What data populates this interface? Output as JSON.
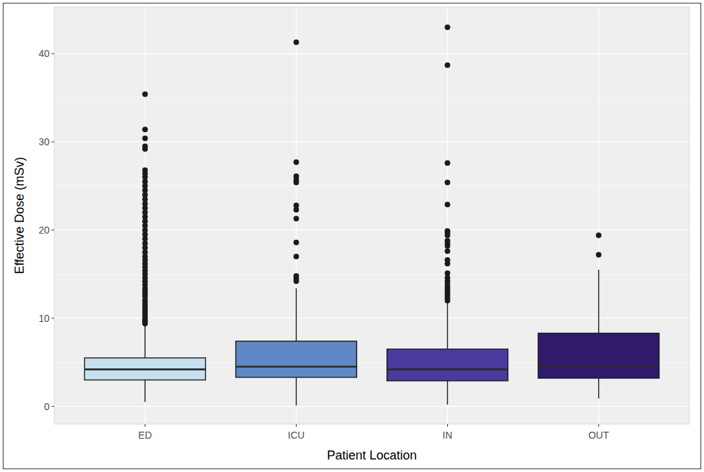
{
  "chart_data": {
    "type": "box",
    "x_label": "Patient Location",
    "y_label": "Effective Dose (mSv)",
    "categories": [
      "ED",
      "ICU",
      "IN",
      "OUT"
    ],
    "colors": [
      "#c6e1ef",
      "#6088c6",
      "#4a3a9e",
      "#2f1a6b"
    ],
    "boxes": [
      {
        "low": 0.5,
        "q1": 3.0,
        "median": 4.2,
        "q3": 5.5,
        "high": 9.3,
        "outliers": [
          9.4,
          9.6,
          9.8,
          10.0,
          10.3,
          10.6,
          10.9,
          11.2,
          11.5,
          11.8,
          12.1,
          12.5,
          12.8,
          13.1,
          13.4,
          13.8,
          14.2,
          14.6,
          15.0,
          15.4,
          15.8,
          16.2,
          16.6,
          17.0,
          17.5,
          18.0,
          18.5,
          19.0,
          19.5,
          20.0,
          20.5,
          21.0,
          21.5,
          22.0,
          22.5,
          23.0,
          23.5,
          24.0,
          24.5,
          25.0,
          25.5,
          26.0,
          26.4,
          26.8,
          29.2,
          29.5,
          30.4,
          31.4,
          35.4
        ]
      },
      {
        "low": 0.1,
        "q1": 3.3,
        "median": 4.5,
        "q3": 7.4,
        "high": 13.4,
        "outliers": [
          14.2,
          14.5,
          14.8,
          17.0,
          18.6,
          21.3,
          22.3,
          22.8,
          25.4,
          25.7,
          26.1,
          27.7,
          41.3
        ]
      },
      {
        "low": 0.2,
        "q1": 2.9,
        "median": 4.2,
        "q3": 6.5,
        "high": 11.8,
        "outliers": [
          12.0,
          12.3,
          12.6,
          12.9,
          13.2,
          13.5,
          13.8,
          14.2,
          14.6,
          15.1,
          16.2,
          16.6,
          17.6,
          18.2,
          18.5,
          18.8,
          19.4,
          19.7,
          19.9,
          22.9,
          25.4,
          27.6,
          38.7,
          43.0
        ]
      },
      {
        "low": 0.9,
        "q1": 3.2,
        "median": 4.6,
        "q3": 8.3,
        "high": 15.5,
        "outliers": [
          17.2,
          19.4
        ]
      }
    ],
    "ylim": [
      -2,
      45.3
    ],
    "yticks": [
      0,
      10,
      20,
      30,
      40
    ],
    "grid": true
  }
}
